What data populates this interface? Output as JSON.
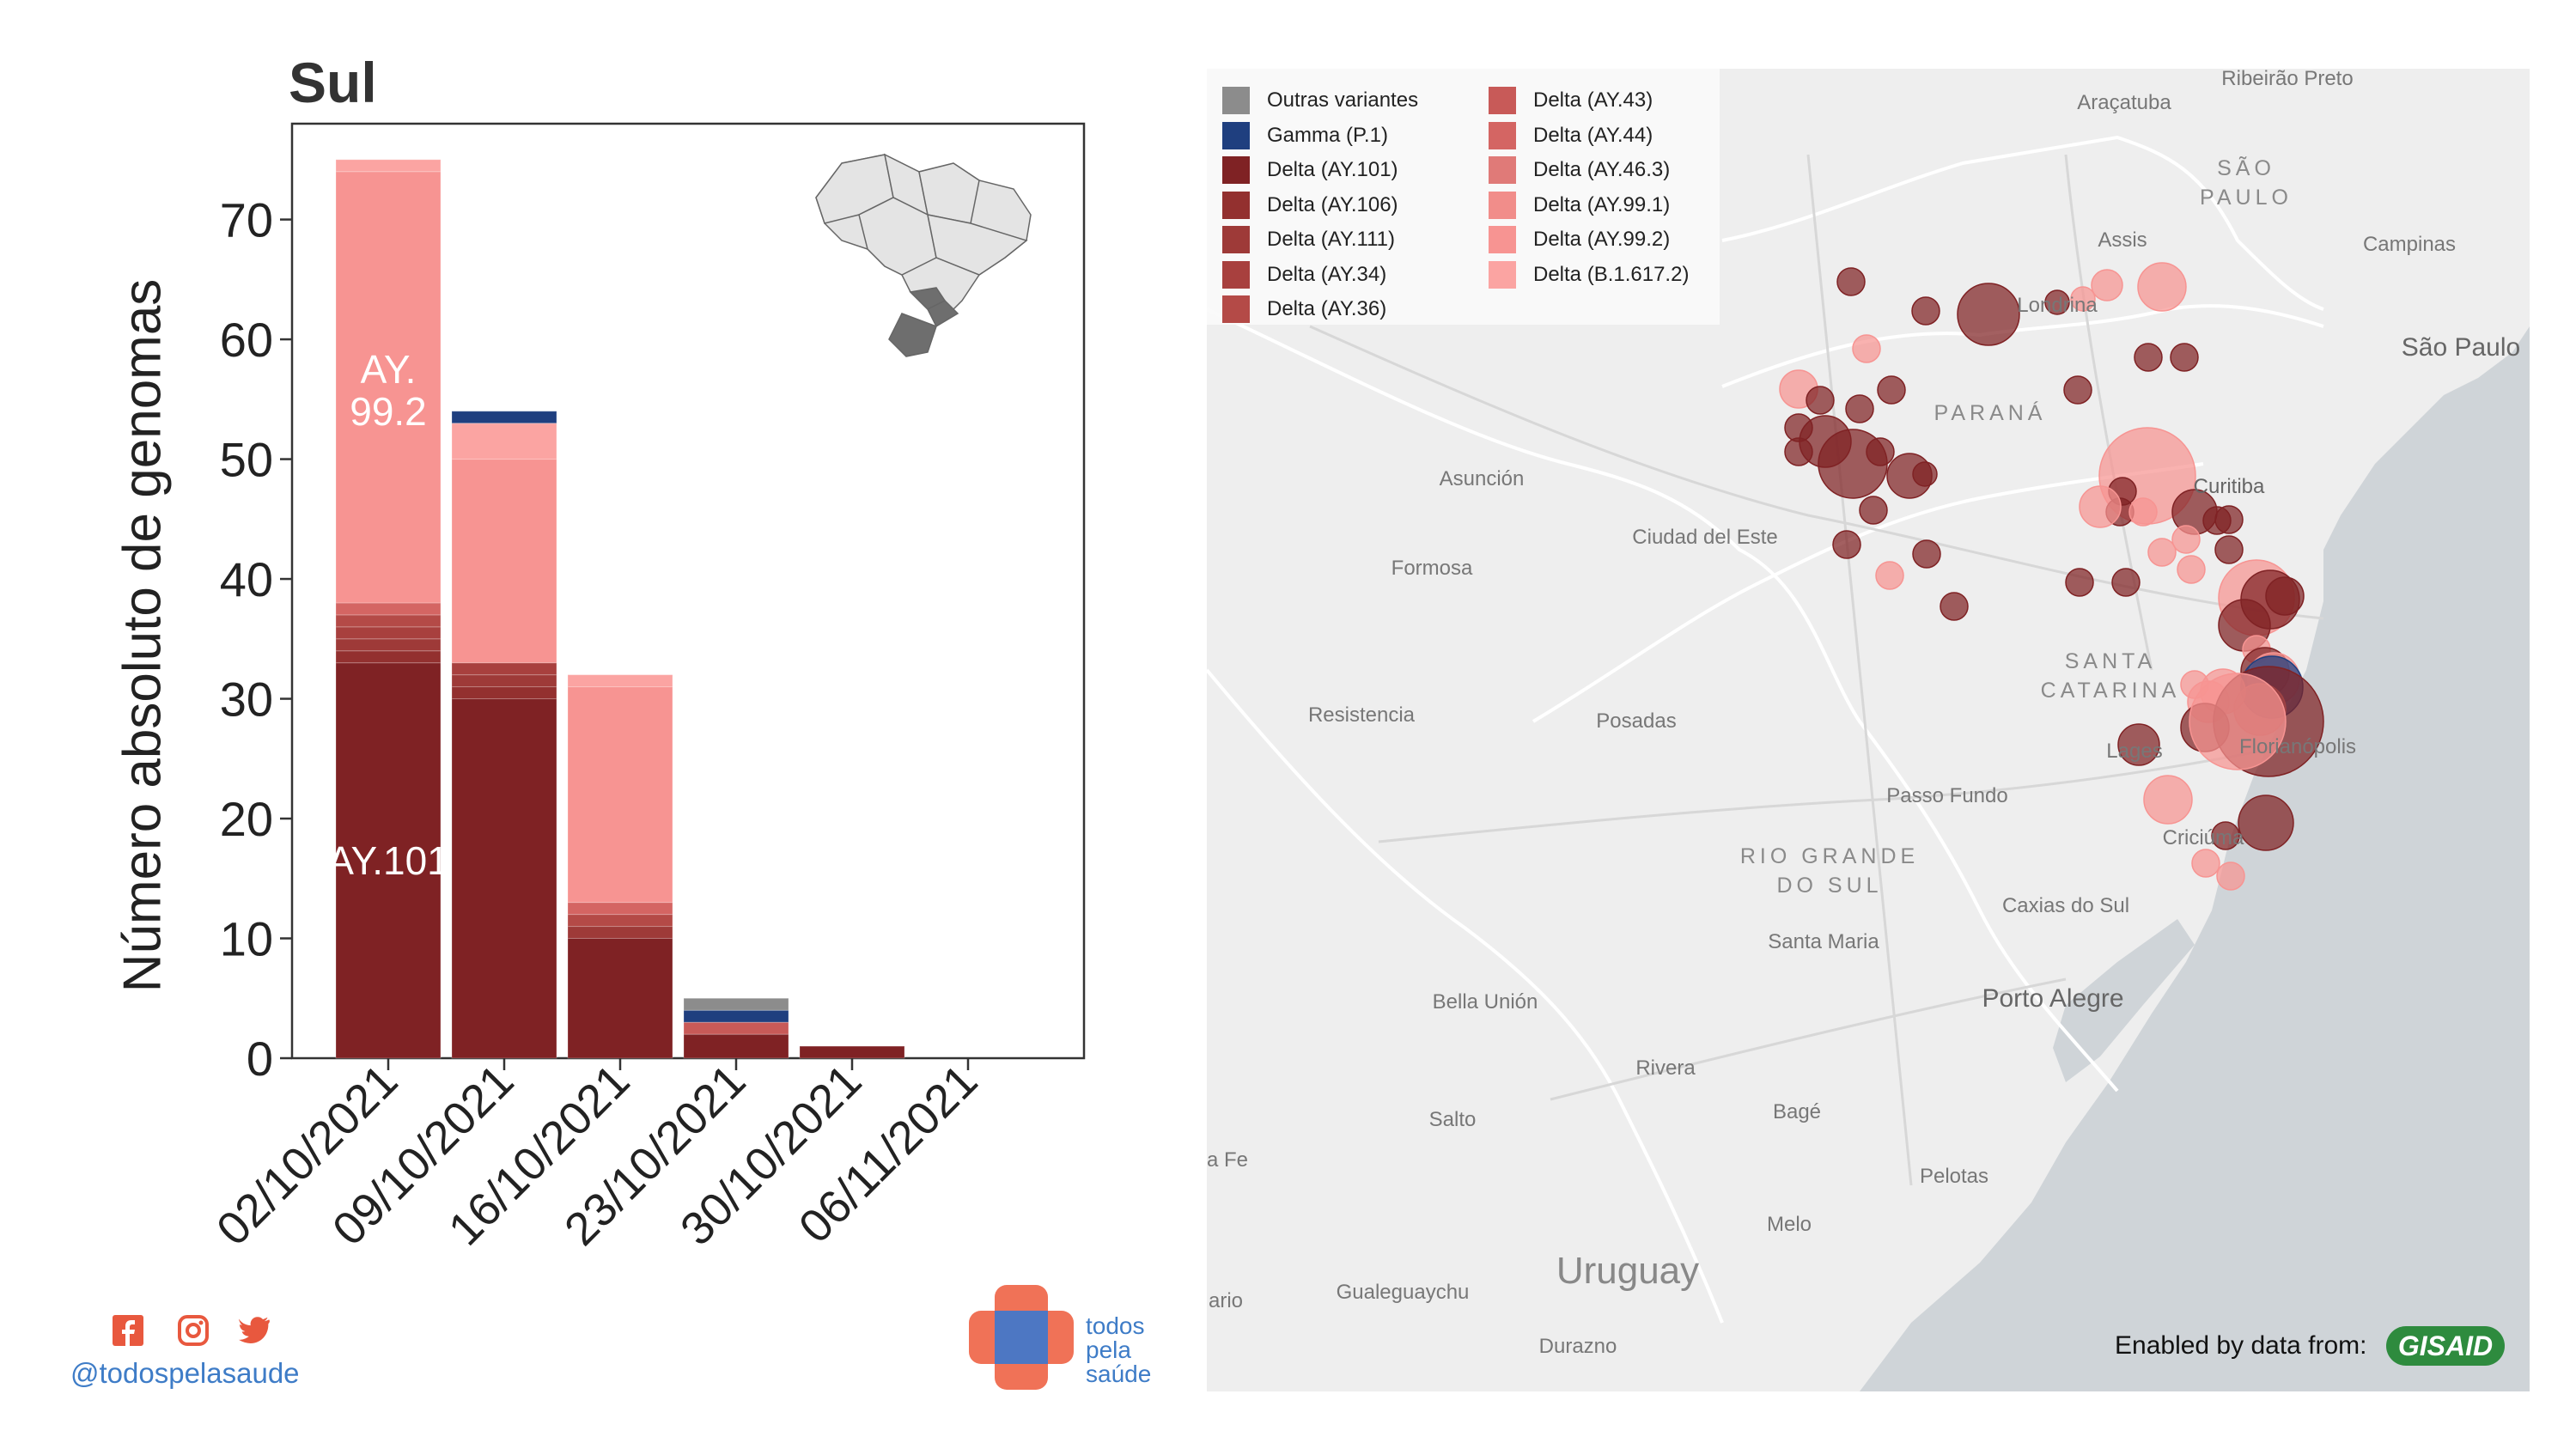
{
  "chart_data": {
    "type": "bar",
    "stacked": true,
    "title": "Sul",
    "ylabel": "Número absoluto de genomas",
    "xlabel": "",
    "ylim": [
      0,
      78
    ],
    "yticks": [
      0,
      10,
      20,
      30,
      40,
      50,
      60,
      70
    ],
    "categories": [
      "02/10/2021",
      "09/10/2021",
      "16/10/2021",
      "23/10/2021",
      "30/10/2021",
      "06/11/2021"
    ],
    "series": [
      {
        "name": "Delta (AY.101)",
        "color": "#7f2224",
        "values": [
          33,
          30,
          10,
          2,
          1,
          0
        ]
      },
      {
        "name": "Delta (AY.106)",
        "color": "#93302f",
        "values": [
          1,
          1,
          0,
          0,
          0,
          0
        ]
      },
      {
        "name": "Delta (AY.111)",
        "color": "#9e3a38",
        "values": [
          1,
          1,
          1,
          0,
          0,
          0
        ]
      },
      {
        "name": "Delta (AY.34)",
        "color": "#a8403e",
        "values": [
          1,
          1,
          0,
          0,
          0,
          0
        ]
      },
      {
        "name": "Delta (AY.36)",
        "color": "#b44a47",
        "values": [
          1,
          0,
          1,
          0,
          0,
          0
        ]
      },
      {
        "name": "Delta (AY.43)",
        "color": "#c85a58",
        "values": [
          0,
          0,
          0,
          1,
          0,
          0
        ]
      },
      {
        "name": "Delta (AY.44)",
        "color": "#d46563",
        "values": [
          1,
          0,
          1,
          0,
          0,
          0
        ]
      },
      {
        "name": "Delta (AY.46.3)",
        "color": "#e07a78",
        "values": [
          0,
          0,
          0,
          0,
          0,
          0
        ]
      },
      {
        "name": "Delta (AY.99.1)",
        "color": "#f18d8a",
        "values": [
          0,
          0,
          0,
          0,
          0,
          0
        ]
      },
      {
        "name": "Delta (AY.99.2)",
        "color": "#f79492",
        "values": [
          36,
          17,
          18,
          0,
          0,
          0
        ]
      },
      {
        "name": "Delta (B.1.617.2)",
        "color": "#fba4a2",
        "values": [
          1,
          3,
          1,
          0,
          0,
          0
        ]
      },
      {
        "name": "Gamma (P.1)",
        "color": "#1f3f7f",
        "values": [
          0,
          1,
          0,
          1,
          0,
          0
        ]
      },
      {
        "name": "Outras variantes",
        "color": "#8c8c8c",
        "values": [
          0,
          0,
          0,
          1,
          0,
          0
        ]
      }
    ],
    "annotations": [
      {
        "text": "AY.",
        "category": "02/10/2021",
        "y": 57.5,
        "color": "#ffffff"
      },
      {
        "text": "99.2",
        "category": "02/10/2021",
        "y": 54,
        "color": "#ffffff"
      },
      {
        "text": "AY.101",
        "category": "02/10/2021",
        "y": 16.5,
        "color": "#ffffff"
      }
    ],
    "legend_placement": "map-top-left",
    "grid": false
  },
  "map": {
    "legend": [
      {
        "label": "Outras variantes",
        "color": "#8c8c8c"
      },
      {
        "label": "Gamma (P.1)",
        "color": "#1f3f7f"
      },
      {
        "label": "Delta (AY.101)",
        "color": "#7f2224"
      },
      {
        "label": "Delta (AY.106)",
        "color": "#93302f"
      },
      {
        "label": "Delta (AY.111)",
        "color": "#9e3a38"
      },
      {
        "label": "Delta (AY.34)",
        "color": "#a8403e"
      },
      {
        "label": "Delta (AY.36)",
        "color": "#b44a47"
      },
      {
        "label": "Delta (AY.43)",
        "color": "#c85a58"
      },
      {
        "label": "Delta (AY.44)",
        "color": "#d46563"
      },
      {
        "label": "Delta (AY.46.3)",
        "color": "#e07a78"
      },
      {
        "label": "Delta (AY.99.1)",
        "color": "#f18d8a"
      },
      {
        "label": "Delta (AY.99.2)",
        "color": "#f79492"
      },
      {
        "label": "Delta (B.1.617.2)",
        "color": "#fba4a2"
      }
    ],
    "places": {
      "ribeirao_preto": "Ribeirão Preto",
      "aracatuba": "Araçatuba",
      "assis": "Assis",
      "campinas": "Campinas",
      "sao_paulo_city": "São Paulo",
      "londrina": "Londrina",
      "curitiba": "Curitiba",
      "asuncion": "Asunción",
      "ciudad_del_este": "Ciudad del Este",
      "formosa": "Formosa",
      "resistencia": "Resistencia",
      "posadas": "Posadas",
      "lages": "Lages",
      "florianopolis": "Florianópolis",
      "passo_fundo": "Passo Fundo",
      "caxias_do_sul": "Caxias do Sul",
      "santa_maria": "Santa Maria",
      "porto_alegre": "Porto Alegre",
      "bella_union": "Bella Unión",
      "rivera": "Rivera",
      "salto": "Salto",
      "santa_fe": "a Fe",
      "bage": "Bagé",
      "pelotas": "Pelotas",
      "melo": "Melo",
      "gualeguaychu": "Gualeguaychu",
      "rosario": "ario",
      "durazno": "Durazno",
      "criciuma": "Criciúma"
    },
    "regions": {
      "sao_paulo_state": [
        "SÃO",
        "PAULO"
      ],
      "parana": [
        "PARANÁ"
      ],
      "santa_catarina": [
        "SANTA",
        "CATARINA"
      ],
      "rio_grande_do_sul": [
        "RIO GRANDE",
        "DO SUL"
      ]
    },
    "country_label": "Uruguay",
    "attribution": "Enabled by data from:",
    "gisaid_logo_text": "GISAID"
  },
  "footer": {
    "handle": "@todospelasaude",
    "logo_text": [
      "todos",
      "pela",
      "saúde"
    ],
    "social_icons": [
      "facebook-icon",
      "instagram-icon",
      "twitter-icon"
    ]
  }
}
